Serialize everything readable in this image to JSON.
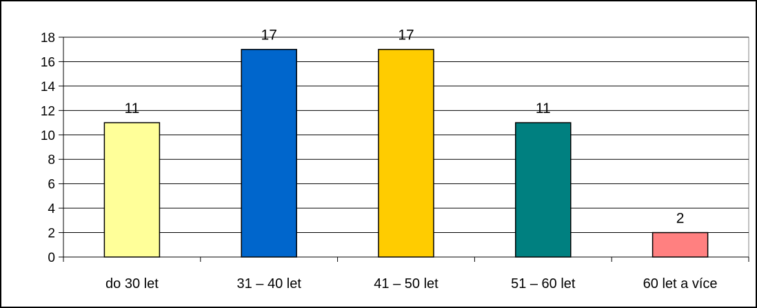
{
  "chart_data": {
    "type": "bar",
    "categories": [
      "do 30 let",
      "31 – 40 let",
      "41 – 50 let",
      "51 – 60 let",
      "60 let a více"
    ],
    "values": [
      11,
      17,
      17,
      11,
      2
    ],
    "value_labels": [
      "11",
      "17",
      "17",
      "11",
      "2"
    ],
    "bar_colors": [
      "#FFFF99",
      "#0066CC",
      "#FFCC00",
      "#008080",
      "#FF8080"
    ],
    "y_ticks": [
      "0",
      "2",
      "4",
      "6",
      "8",
      "10",
      "12",
      "14",
      "16",
      "18"
    ],
    "ylim": [
      0,
      18
    ],
    "grid": true,
    "legend": "none",
    "title": "",
    "xlabel": "",
    "ylabel": ""
  }
}
